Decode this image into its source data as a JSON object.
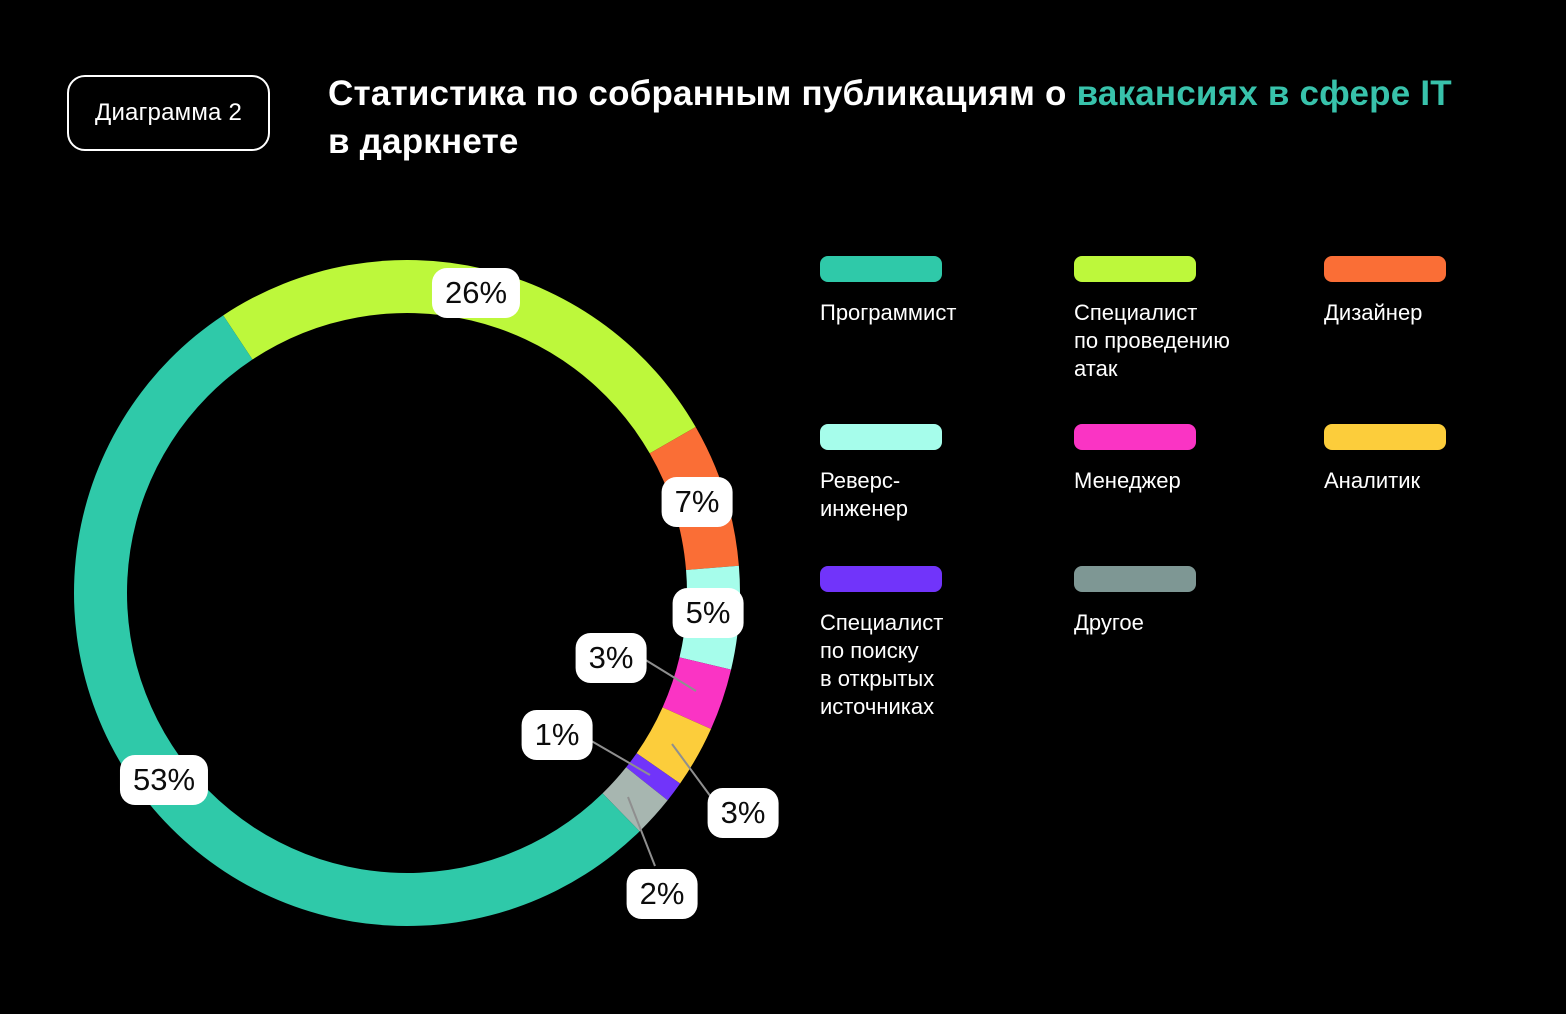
{
  "badge": {
    "label": "Диаграмма 2"
  },
  "title": {
    "part1": "Статистика по собранным публикациям о ",
    "accent": "вакансиях в сфере IT",
    "line2": "в даркнете",
    "accent_color": "#38c2ab"
  },
  "chart_data": {
    "type": "pie",
    "subtype": "donut",
    "title": "Статистика по собранным публикациям о вакансиях в сфере IT в даркнете",
    "units": "%",
    "start_angle_deg": -33.5,
    "direction": "clockwise",
    "legend_position": "right",
    "slices": [
      {
        "key": "attack-specialist",
        "label": "Специалист по проведению атак",
        "value": 26,
        "display": "26%",
        "color": "#bdf83b"
      },
      {
        "key": "designer",
        "label": "Дизайнер",
        "value": 7,
        "display": "7%",
        "color": "#fa6e36"
      },
      {
        "key": "reverse-engineer",
        "label": "Реверс-инженер",
        "value": 5,
        "display": "5%",
        "color": "#a6fdeb"
      },
      {
        "key": "manager",
        "label": "Менеджер",
        "value": 3,
        "display": "3%",
        "color": "#fa34c4"
      },
      {
        "key": "analyst",
        "label": "Аналитик",
        "value": 3,
        "display": "3%",
        "color": "#fccd3b"
      },
      {
        "key": "osint-specialist",
        "label": "Специалист по поиску в открытых источниках",
        "value": 1,
        "display": "1%",
        "color": "#7134fa"
      },
      {
        "key": "other",
        "label": "Другое",
        "value": 2,
        "display": "2%",
        "color": "#a7b6b0"
      },
      {
        "key": "programmer",
        "label": "Программист",
        "value": 53,
        "display": "53%",
        "color": "#2fc9a9"
      }
    ]
  },
  "legend": {
    "items": [
      {
        "key": "programmer",
        "label": "Программист",
        "color": "#2fc9a9"
      },
      {
        "key": "attack-specialist",
        "label": "Специалист\nпо проведению\nатак",
        "color": "#bdf83b"
      },
      {
        "key": "designer",
        "label": "Дизайнер",
        "color": "#fa6e36"
      },
      {
        "key": "reverse-engineer",
        "label": "Реверс-\nинженер",
        "color": "#a6fdeb"
      },
      {
        "key": "manager",
        "label": "Менеджер",
        "color": "#fa34c4"
      },
      {
        "key": "analyst",
        "label": "Аналитик",
        "color": "#fccd3b"
      },
      {
        "key": "osint-specialist",
        "label": "Специалист\nпо поиску\nв открытых\nисточниках",
        "color": "#7134fa"
      },
      {
        "key": "other",
        "label": "Другое",
        "color": "#7e9794"
      }
    ]
  }
}
